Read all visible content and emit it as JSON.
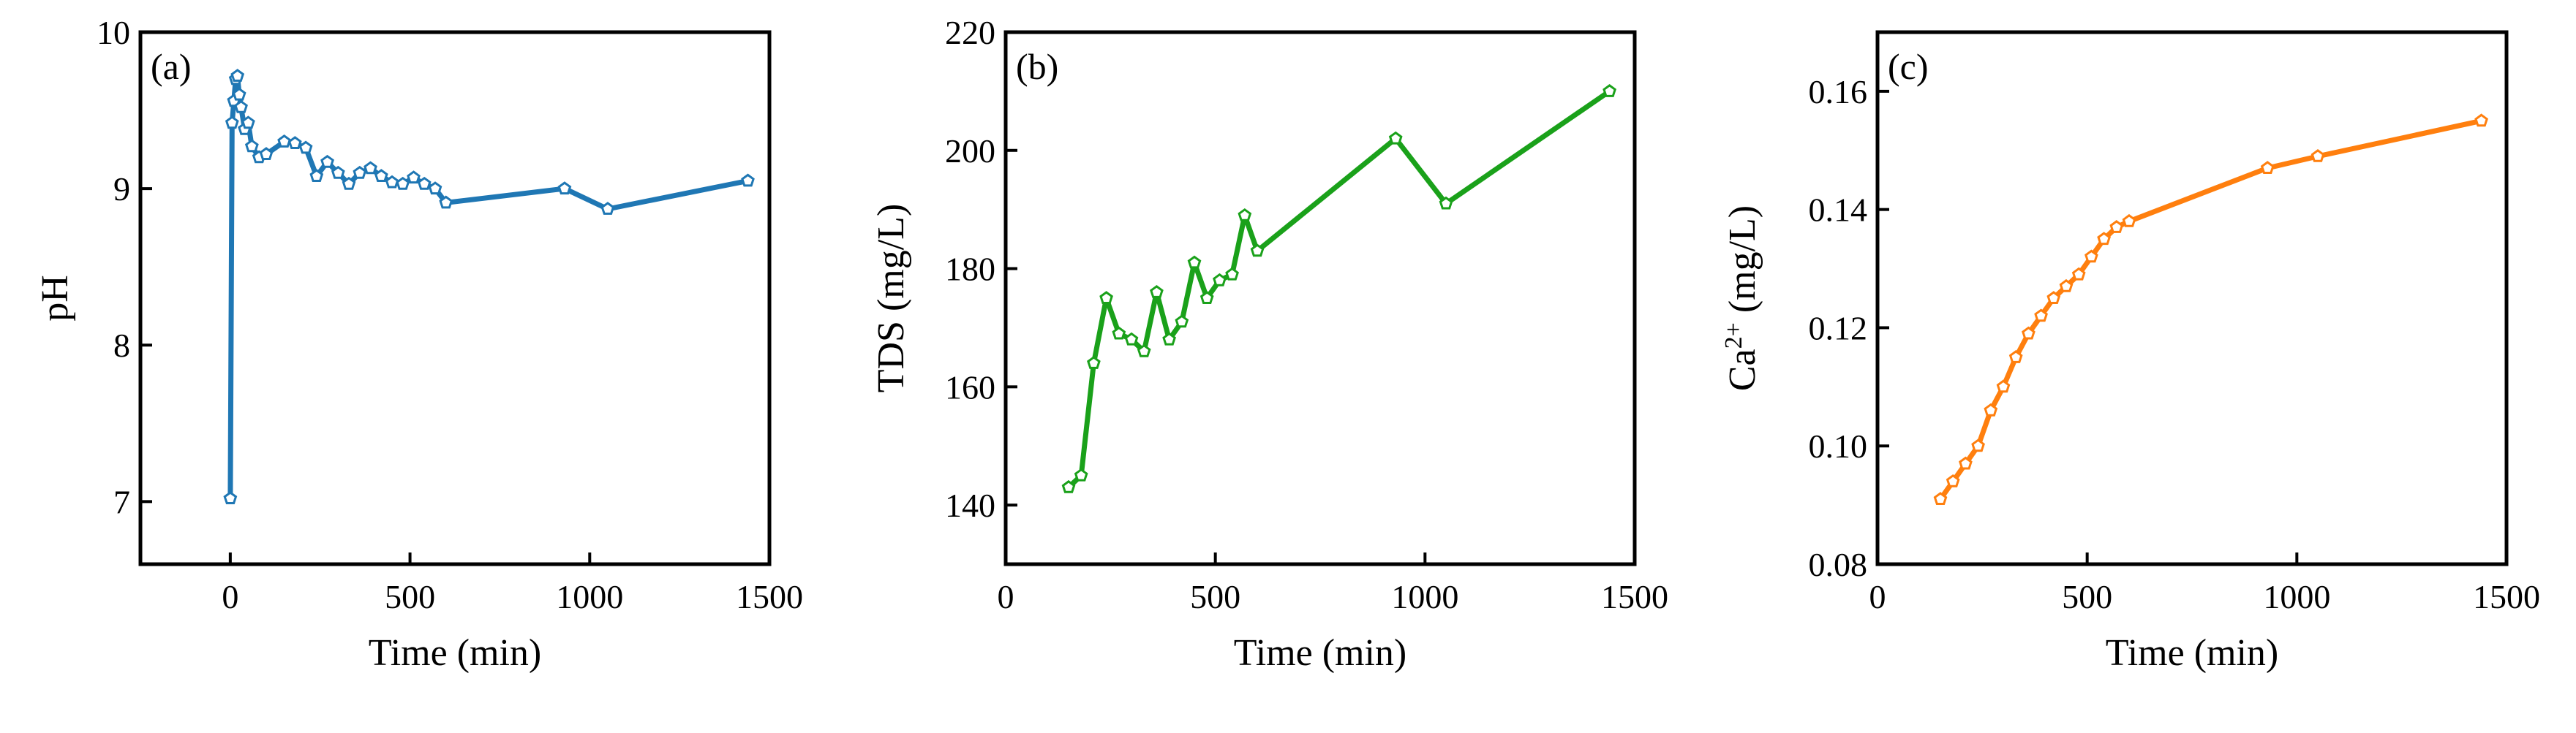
{
  "figure": {
    "panels": [
      {
        "label": "(a)",
        "xlabel": "Time (min)",
        "ylabel": "pH"
      },
      {
        "label": "(b)",
        "xlabel": "Time (min)",
        "ylabel": "TDS (mg/L)"
      },
      {
        "label": "(c)",
        "xlabel": "Time (min)",
        "ylabel_main": "Ca",
        "ylabel_sup": "2+",
        "ylabel_rest": " (mg/L)"
      }
    ]
  },
  "chart_data": [
    {
      "type": "line",
      "panel_label": "(a)",
      "xlabel": "Time (min)",
      "ylabel": "pH",
      "xlim": [
        -250,
        1500
      ],
      "ylim": [
        6.6,
        10
      ],
      "xticks": [
        0,
        500,
        1000,
        1500
      ],
      "yticks": [
        7,
        8,
        9,
        10
      ],
      "grid": false,
      "color": "#1f77b4",
      "series": [
        {
          "x": [
            0,
            5,
            10,
            15,
            20,
            25,
            30,
            40,
            50,
            60,
            80,
            100,
            150,
            180,
            210,
            240,
            270,
            300,
            330,
            360,
            390,
            420,
            450,
            480,
            510,
            540,
            570,
            600,
            930,
            1050,
            1440
          ],
          "y": [
            7.02,
            9.42,
            9.56,
            9.7,
            9.72,
            9.6,
            9.52,
            9.38,
            9.42,
            9.27,
            9.2,
            9.22,
            9.3,
            9.29,
            9.26,
            9.08,
            9.17,
            9.1,
            9.03,
            9.1,
            9.13,
            9.08,
            9.04,
            9.03,
            9.07,
            9.03,
            9.0,
            8.91,
            9.0,
            8.87,
            9.05
          ]
        }
      ]
    },
    {
      "type": "line",
      "panel_label": "(b)",
      "xlabel": "Time (min)",
      "ylabel": "TDS (mg/L)",
      "xlim": [
        0,
        1500
      ],
      "ylim": [
        130,
        220
      ],
      "xticks": [
        0,
        500,
        1000,
        1500
      ],
      "yticks": [
        140,
        160,
        180,
        200,
        220
      ],
      "grid": false,
      "color": "#1aa11a",
      "series": [
        {
          "x": [
            150,
            180,
            210,
            240,
            270,
            300,
            330,
            360,
            390,
            420,
            450,
            480,
            510,
            540,
            570,
            600,
            930,
            1050,
            1440
          ],
          "y": [
            143,
            145,
            164,
            175,
            169,
            168,
            166,
            176,
            168,
            171,
            181,
            175,
            178,
            179,
            189,
            183,
            202,
            191,
            210
          ]
        }
      ]
    },
    {
      "type": "line",
      "panel_label": "(c)",
      "xlabel": "Time (min)",
      "ylabel": "Ca2+ (mg/L)",
      "xlim": [
        0,
        1500
      ],
      "ylim": [
        0.08,
        0.17
      ],
      "xticks": [
        0,
        500,
        1000,
        1500
      ],
      "yticks": [
        0.08,
        0.1,
        0.12,
        0.14,
        0.16
      ],
      "grid": false,
      "color": "#ff7f0e",
      "series": [
        {
          "x": [
            150,
            180,
            210,
            240,
            270,
            300,
            330,
            360,
            390,
            420,
            450,
            480,
            510,
            540,
            570,
            600,
            930,
            1050,
            1440
          ],
          "y": [
            0.091,
            0.094,
            0.097,
            0.1,
            0.106,
            0.11,
            0.115,
            0.119,
            0.122,
            0.125,
            0.127,
            0.129,
            0.132,
            0.135,
            0.137,
            0.138,
            0.147,
            0.149,
            0.155
          ]
        }
      ]
    }
  ]
}
